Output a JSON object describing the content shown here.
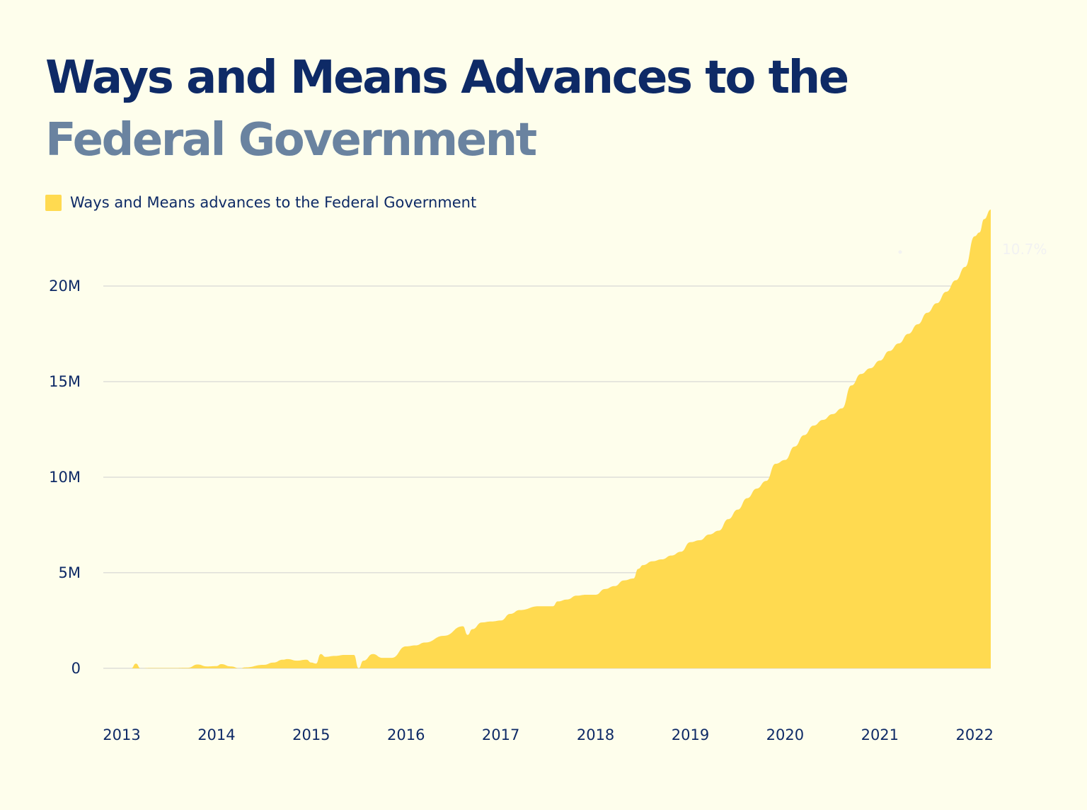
{
  "title": {
    "line1": "Ways and Means Advances to the",
    "line2": "Federal Government"
  },
  "colors": {
    "background": "#FEFEEC",
    "title_primary": "#0E2A66",
    "title_secondary": "#6A83A0",
    "area": "#FFDA50",
    "grid": "#CFCFCF",
    "tick_text": "#0E2A66",
    "annotation": "#F2F2F2"
  },
  "chart_data": {
    "type": "area",
    "title": "Ways and Means Advances to the Federal Government",
    "xlabel": "",
    "ylabel": "",
    "legend": "top-left",
    "grid": true,
    "xlim": [
      2013,
      2022.17
    ],
    "ylim": [
      -0.3,
      24
    ],
    "x_ticks": [
      2013,
      2014,
      2015,
      2016,
      2017,
      2018,
      2019,
      2020,
      2021,
      2022
    ],
    "x_tick_labels": [
      "2013",
      "2014",
      "2015",
      "2016",
      "2017",
      "2018",
      "2019",
      "2020",
      "2021",
      "2022"
    ],
    "y_ticks": [
      0,
      5,
      10,
      15,
      20
    ],
    "y_tick_labels": [
      "0",
      "5M",
      "10M",
      "15M",
      "20M"
    ],
    "annotation": {
      "text": "10.7%"
    },
    "series": [
      {
        "name": "Ways and Means advances to the Federal Government",
        "unit": "M",
        "x": [
          2013.0,
          2013.1,
          2013.15,
          2013.2,
          2013.3,
          2013.5,
          2013.7,
          2013.8,
          2013.9,
          2014.0,
          2014.05,
          2014.15,
          2014.25,
          2014.3,
          2014.5,
          2014.6,
          2014.7,
          2014.75,
          2014.85,
          2014.95,
          2015.0,
          2015.05,
          2015.1,
          2015.15,
          2015.25,
          2015.35,
          2015.45,
          2015.5,
          2015.55,
          2015.65,
          2015.75,
          2015.85,
          2016.0,
          2016.1,
          2016.2,
          2016.4,
          2016.6,
          2016.65,
          2016.7,
          2016.8,
          2016.9,
          2017.0,
          2017.1,
          2017.2,
          2017.4,
          2017.55,
          2017.6,
          2017.7,
          2017.8,
          2017.9,
          2018.0,
          2018.1,
          2018.2,
          2018.3,
          2018.4,
          2018.45,
          2018.5,
          2018.6,
          2018.7,
          2018.8,
          2018.9,
          2019.0,
          2019.1,
          2019.2,
          2019.3,
          2019.4,
          2019.5,
          2019.6,
          2019.7,
          2019.8,
          2019.9,
          2020.0,
          2020.1,
          2020.2,
          2020.3,
          2020.4,
          2020.5,
          2020.6,
          2020.7,
          2020.8,
          2020.9,
          2021.0,
          2021.1,
          2021.2,
          2021.3,
          2021.4,
          2021.5,
          2021.6,
          2021.7,
          2021.8,
          2021.9,
          2022.0,
          2022.05,
          2022.1,
          2022.17
        ],
        "values": [
          0.0,
          0.0,
          0.25,
          0.0,
          0.02,
          0.02,
          0.03,
          0.2,
          0.1,
          0.12,
          0.22,
          0.1,
          0.0,
          0.05,
          0.18,
          0.3,
          0.45,
          0.48,
          0.4,
          0.45,
          0.3,
          0.25,
          0.75,
          0.6,
          0.65,
          0.7,
          0.7,
          0.0,
          0.4,
          0.75,
          0.55,
          0.55,
          1.15,
          1.2,
          1.35,
          1.7,
          2.2,
          1.75,
          2.05,
          2.4,
          2.45,
          2.5,
          2.85,
          3.05,
          3.25,
          3.25,
          3.5,
          3.6,
          3.8,
          3.85,
          3.85,
          4.15,
          4.3,
          4.6,
          4.7,
          5.2,
          5.4,
          5.6,
          5.7,
          5.9,
          6.1,
          6.6,
          6.7,
          7.0,
          7.2,
          7.8,
          8.3,
          8.9,
          9.4,
          9.8,
          10.7,
          10.9,
          11.6,
          12.2,
          12.7,
          13.0,
          13.3,
          13.6,
          14.8,
          15.4,
          15.7,
          16.1,
          16.6,
          17.0,
          17.5,
          18.0,
          18.6,
          19.1,
          19.7,
          20.3,
          21.0,
          22.6,
          22.8,
          23.5,
          24.0
        ]
      }
    ]
  }
}
